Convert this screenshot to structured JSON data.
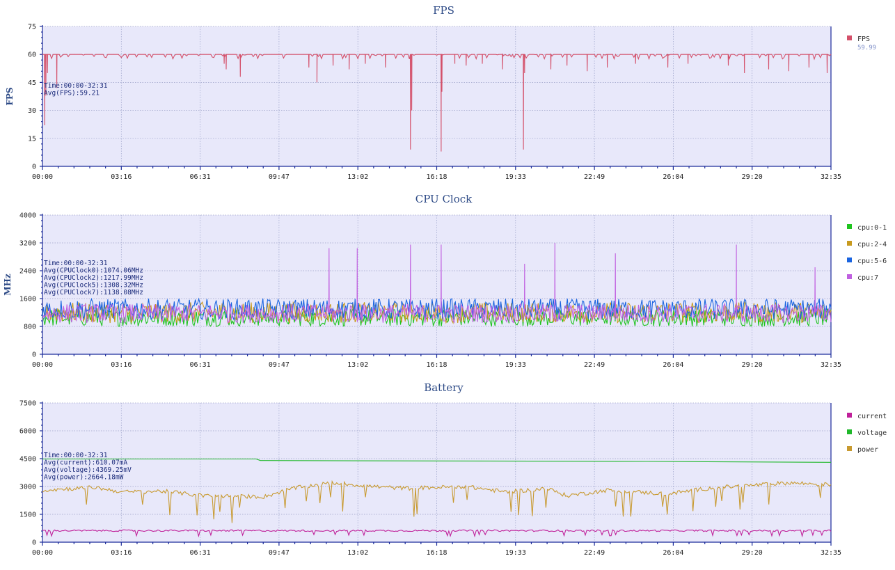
{
  "chart_data": [
    {
      "type": "line",
      "title": "FPS",
      "ylabel": "FPS",
      "ylim": [
        0,
        75
      ],
      "yticks": [
        "0",
        "15",
        "30",
        "45",
        "60",
        "75"
      ],
      "xlim_seconds": [
        0,
        1955
      ],
      "xticks": [
        "00:00",
        "03:16",
        "06:31",
        "09:47",
        "13:02",
        "16:18",
        "19:33",
        "22:49",
        "26:04",
        "29:20",
        "32:35"
      ],
      "grid": true,
      "legend_position": "right",
      "annotation": [
        "Time:00:00-32:31",
        "Avg(FPS):59.21"
      ],
      "series": [
        {
          "name": "FPS",
          "legend_value": "59.99",
          "color": "#d4506a",
          "baseline": 60,
          "dips": [
            [
              5,
              22
            ],
            [
              8,
              38
            ],
            [
              12,
              50
            ],
            [
              35,
              42
            ],
            [
              450,
              55
            ],
            [
              455,
              52
            ],
            [
              490,
              48
            ],
            [
              660,
              53
            ],
            [
              680,
              45
            ],
            [
              720,
              54
            ],
            [
              760,
              52
            ],
            [
              800,
              55
            ],
            [
              850,
              53
            ],
            [
              912,
              9
            ],
            [
              915,
              30
            ],
            [
              988,
              8
            ],
            [
              990,
              40
            ],
            [
              1022,
              55
            ],
            [
              1050,
              54
            ],
            [
              1090,
              55
            ],
            [
              1140,
              52
            ],
            [
              1192,
              9
            ],
            [
              1195,
              50
            ],
            [
              1260,
              52
            ],
            [
              1300,
              54
            ],
            [
              1350,
              51
            ],
            [
              1400,
              53
            ],
            [
              1470,
              55
            ],
            [
              1550,
              53
            ],
            [
              1600,
              55
            ],
            [
              1700,
              54
            ],
            [
              1740,
              50
            ],
            [
              1800,
              52
            ],
            [
              1850,
              51
            ],
            [
              1900,
              53
            ],
            [
              1945,
              50
            ]
          ]
        }
      ]
    },
    {
      "type": "line",
      "title": "CPU Clock",
      "ylabel": "MHz",
      "ylim": [
        0,
        4000
      ],
      "yticks": [
        "0",
        "800",
        "1600",
        "2400",
        "3200",
        "4000"
      ],
      "xlim_seconds": [
        0,
        1955
      ],
      "xticks": [
        "00:00",
        "03:16",
        "06:31",
        "09:47",
        "13:02",
        "16:18",
        "19:33",
        "22:49",
        "26:04",
        "29:20",
        "32:35"
      ],
      "grid": true,
      "legend_position": "right",
      "annotation": [
        "Time:00:00-32:31",
        "Avg(CPUClock0):1074.06MHz",
        "Avg(CPUClock2):1217.99MHz",
        "Avg(CPUClock5):1308.32MHz",
        "Avg(CPUClock7):1138.08MHz"
      ],
      "series": [
        {
          "name": "cpu:0-1",
          "color": "#1fc41f",
          "low": 800,
          "high": 1300
        },
        {
          "name": "cpu:2-4",
          "color": "#c89a1e",
          "low": 900,
          "high": 1500
        },
        {
          "name": "cpu:5-6",
          "color": "#1a64e0",
          "low": 1000,
          "high": 1600
        },
        {
          "name": "cpu:7",
          "color": "#c060e0",
          "low": 900,
          "high": 1450,
          "spikes": [
            [
              710,
              3050
            ],
            [
              780,
              3050
            ],
            [
              912,
              3150
            ],
            [
              988,
              3150
            ],
            [
              1195,
              2600
            ],
            [
              1270,
              3200
            ],
            [
              1420,
              2900
            ],
            [
              1720,
              3150
            ],
            [
              1915,
              2500
            ]
          ]
        }
      ]
    },
    {
      "type": "line",
      "title": "Battery",
      "ylim": [
        0,
        7500
      ],
      "yticks": [
        "0",
        "1500",
        "3000",
        "4500",
        "6000",
        "7500"
      ],
      "xlim_seconds": [
        0,
        1955
      ],
      "xticks": [
        "00:00",
        "03:16",
        "06:31",
        "09:47",
        "13:02",
        "16:18",
        "19:33",
        "22:49",
        "26:04",
        "29:20",
        "32:35"
      ],
      "grid": true,
      "legend_position": "right",
      "annotation": [
        "Time:00:00-32:31",
        "Avg(current):610.07mA",
        "Avg(voltage):4369.25mV",
        "Avg(power):2664.18mW"
      ],
      "series": [
        {
          "name": "current",
          "color": "#c0209a",
          "level": 620
        },
        {
          "name": "voltage",
          "color": "#1fb82a",
          "points": [
            [
              0,
              4480
            ],
            [
              530,
              4480
            ],
            [
              540,
              4400
            ],
            [
              1500,
              4350
            ],
            [
              1955,
              4300
            ]
          ]
        },
        {
          "name": "power",
          "color": "#c89a30",
          "levels": [
            [
              0,
              2800
            ],
            [
              130,
              2950
            ],
            [
              200,
              2700
            ],
            [
              300,
              2750
            ],
            [
              400,
              2500
            ],
            [
              550,
              2450
            ],
            [
              620,
              2900
            ],
            [
              720,
              3200
            ],
            [
              820,
              3000
            ],
            [
              900,
              2900
            ],
            [
              1050,
              3000
            ],
            [
              1150,
              2700
            ],
            [
              1250,
              2900
            ],
            [
              1300,
              2500
            ],
            [
              1400,
              2800
            ],
            [
              1550,
              2600
            ],
            [
              1650,
              2900
            ],
            [
              1750,
              3050
            ],
            [
              1850,
              3200
            ],
            [
              1955,
              3100
            ]
          ]
        }
      ]
    }
  ]
}
